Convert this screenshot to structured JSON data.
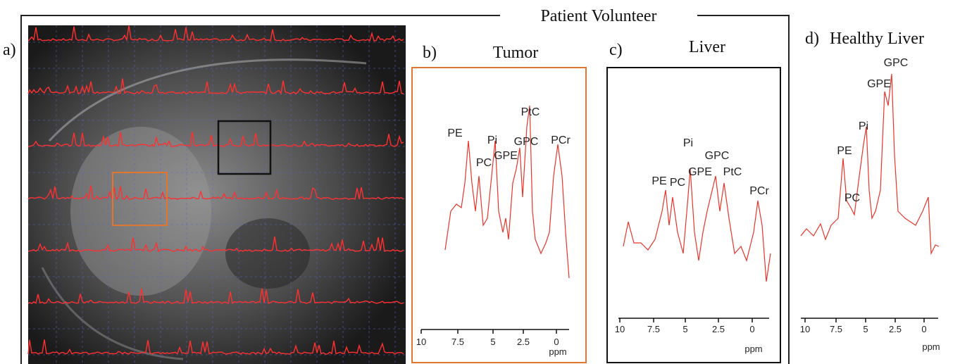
{
  "figure": {
    "title": "Patient Volunteer",
    "panels": [
      {
        "label": "a)"
      },
      {
        "label": "b)",
        "title": "Tumor",
        "peaks": [
          "PE",
          "PC",
          "Pi",
          "GPE",
          "GPC",
          "PtC",
          "PCr"
        ],
        "ticks": [
          10,
          7.5,
          5,
          2.5,
          0
        ],
        "axis_label": "ppm"
      },
      {
        "label": "c)",
        "title": "Liver",
        "peaks": [
          "PE",
          "PC",
          "Pi",
          "GPE",
          "GPC",
          "PtC",
          "PCr"
        ],
        "ticks": [
          10,
          7.5,
          5,
          2.5,
          0
        ],
        "axis_label": "ppm"
      },
      {
        "label": "d)",
        "title": "Healthy Liver",
        "peaks": [
          "GPC",
          "GPE",
          "Pi",
          "PE",
          "PC"
        ],
        "ticks": [
          10,
          7.5,
          5,
          2.5,
          0
        ],
        "axis_label": "ppm"
      }
    ]
  }
}
